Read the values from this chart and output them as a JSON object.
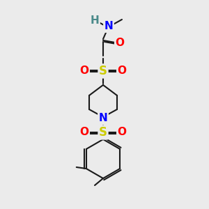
{
  "bg_color": "#ebebeb",
  "bond_color": "#1a1a1a",
  "bond_lw": 1.5,
  "atom_colors": {
    "N": "#0000ff",
    "H": "#4a8a8a",
    "O": "#ff0000",
    "S": "#cccc00",
    "C_implicit": "#1a1a1a"
  },
  "font_size": 11,
  "fig_size": [
    3.0,
    3.0
  ],
  "dpi": 100
}
